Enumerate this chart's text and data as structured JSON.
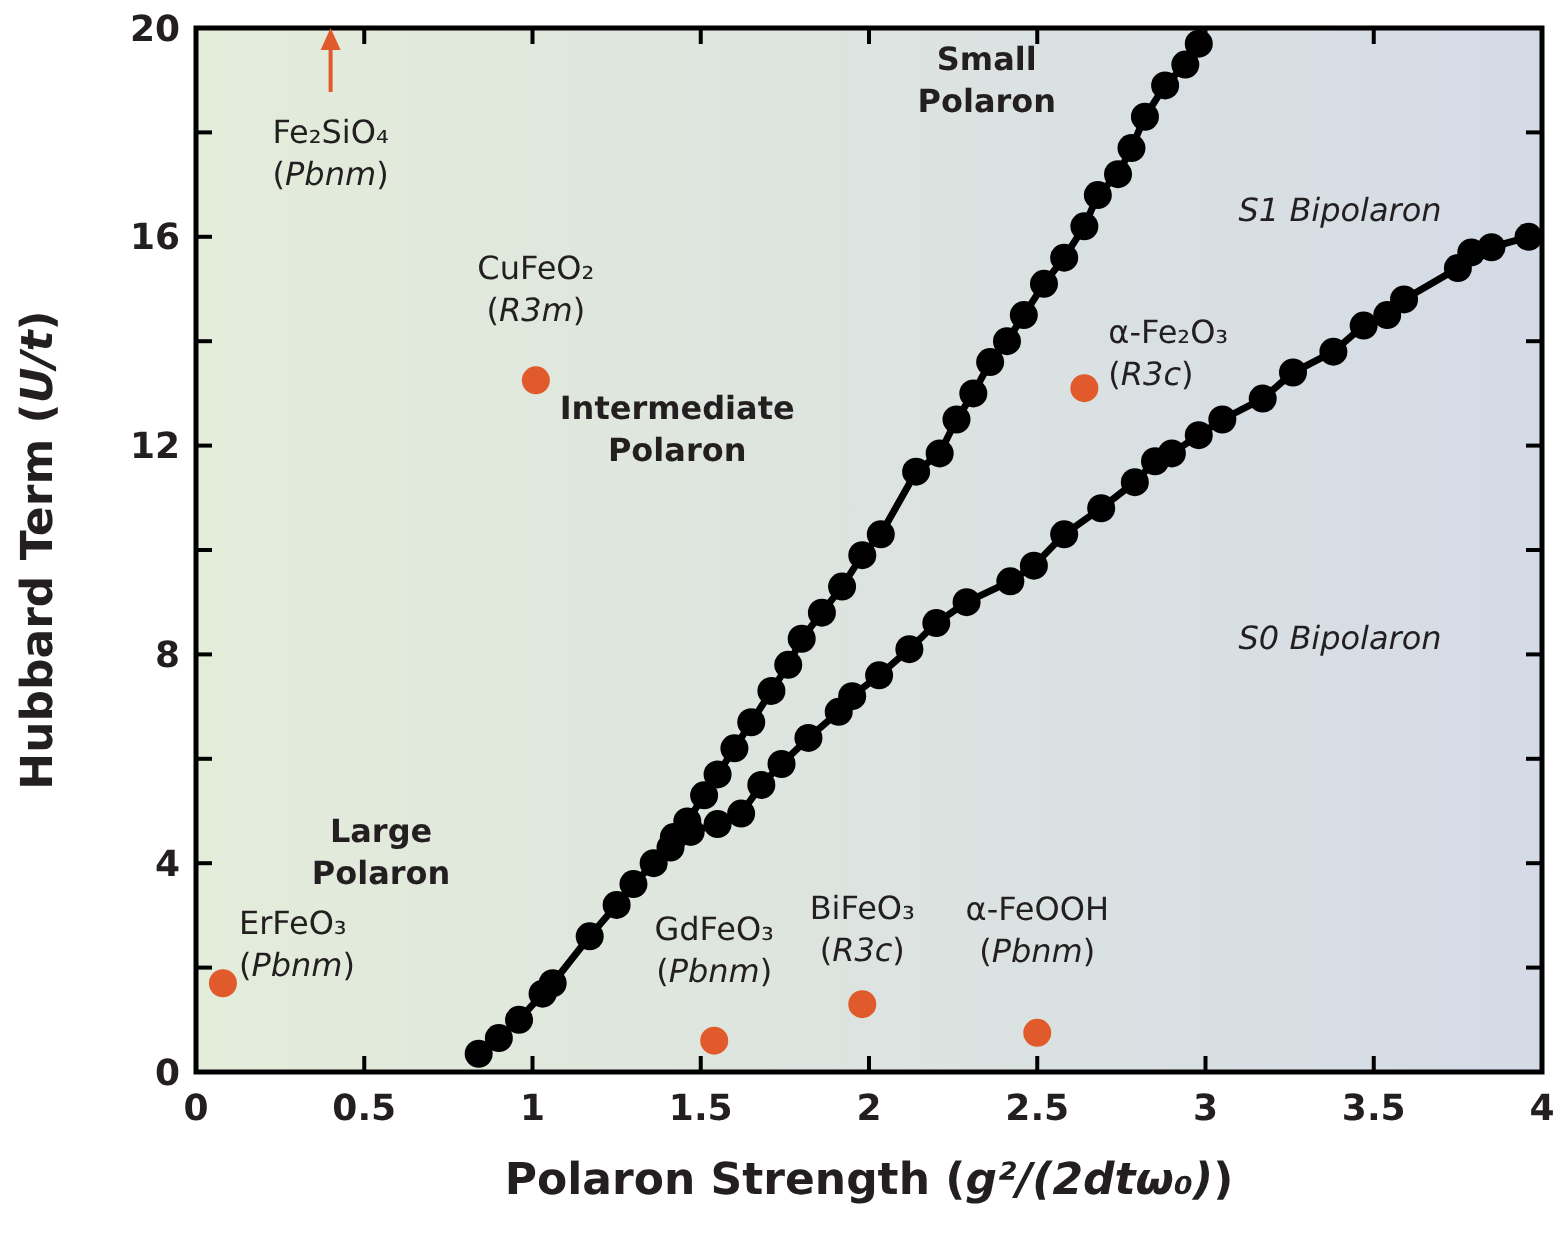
{
  "chart_data": {
    "type": "line",
    "xlabel": "Polaron Strength (g²/(2dtω₀))",
    "ylabel": "Hubbard Term (U/t)",
    "xlim": [
      0,
      4
    ],
    "ylim": [
      0,
      20
    ],
    "xticks": [
      0,
      0.5,
      1,
      1.5,
      2,
      2.5,
      3,
      3.5,
      4
    ],
    "yticks": [
      0,
      {
        "value": 2,
        "label": null
      },
      4,
      {
        "value": 6,
        "label": null
      },
      8,
      {
        "value": 10,
        "label": null
      },
      12,
      {
        "value": 14,
        "label": null
      },
      16,
      {
        "value": 18,
        "label": null
      },
      20
    ],
    "grid": false,
    "legend": false,
    "marker": "circle",
    "line_style": "solid",
    "series": [
      {
        "color": "#000000",
        "x": [
          0.84,
          0.9,
          0.96,
          1.03,
          1.06,
          1.17,
          1.25,
          1.3,
          1.36,
          1.42,
          1.46,
          1.51,
          1.55,
          1.6,
          1.65,
          1.71,
          1.76,
          1.8,
          1.86,
          1.92,
          1.98,
          2.035,
          2.14,
          2.21,
          2.26,
          2.31,
          2.36,
          2.41,
          2.46,
          2.52,
          2.58,
          2.64,
          2.68,
          2.74,
          2.78,
          2.82,
          2.88,
          2.94,
          2.98
        ],
        "values": [
          0.35,
          0.65,
          1.0,
          1.5,
          1.7,
          2.6,
          3.2,
          3.6,
          4.0,
          4.5,
          4.8,
          5.3,
          5.7,
          6.2,
          6.7,
          7.3,
          7.8,
          8.3,
          8.8,
          9.3,
          9.9,
          10.3,
          11.5,
          11.85,
          12.5,
          13.0,
          13.6,
          14.0,
          14.5,
          15.1,
          15.6,
          16.2,
          16.8,
          17.2,
          17.7,
          18.3,
          18.9,
          19.3,
          19.7
        ]
      },
      {
        "color": "#000000",
        "x": [
          1.41,
          1.47,
          1.55,
          1.62,
          1.68,
          1.74,
          1.82,
          1.91,
          1.95,
          2.03,
          2.12,
          2.2,
          2.29,
          2.42,
          2.49,
          2.58,
          2.69,
          2.79,
          2.85,
          2.9,
          2.98,
          3.05,
          3.17,
          3.26,
          3.38,
          3.47,
          3.54,
          3.59,
          3.75,
          3.79,
          3.85,
          3.96
        ],
        "values": [
          4.3,
          4.6,
          4.75,
          4.95,
          5.5,
          5.9,
          6.4,
          6.9,
          7.2,
          7.6,
          8.1,
          8.6,
          9.0,
          9.4,
          9.7,
          10.3,
          10.8,
          11.3,
          11.7,
          11.85,
          12.2,
          12.5,
          12.9,
          13.4,
          13.8,
          14.3,
          14.5,
          14.8,
          15.4,
          15.7,
          15.8,
          16.0
        ]
      },
      {
        "type": "scatter",
        "color": "#e05a2b",
        "x": [
          0.08,
          1.01,
          1.54,
          1.98,
          2.5,
          2.64
        ],
        "values": [
          1.7,
          13.25,
          0.6,
          1.3,
          0.75,
          13.1
        ]
      }
    ],
    "annotations": [
      {
        "text": "ErFeO₃\n(Pbnm)",
        "x": 0.08,
        "y": 1.7
      },
      {
        "text": "CuFeO₂\n(R3m)",
        "x": 1.01,
        "y": 13.25
      },
      {
        "text": "GdFeO₃\n(Pbnm)",
        "x": 1.54,
        "y": 0.6
      },
      {
        "text": "BiFeO₃\n(R3c)",
        "x": 1.98,
        "y": 1.3
      },
      {
        "text": "α-FeOOH\n(Pbnm)",
        "x": 2.5,
        "y": 0.75
      },
      {
        "text": "α-Fe₂O₃\n(R3c)",
        "x": 2.64,
        "y": 13.1
      },
      "Fe₂SiO₄\n(Pbnm)",
      "Large\nPolaron",
      "Intermediate\nPolaron",
      "Small\nPolaron",
      "S1 Bipolaron",
      "S0 Bipolaron"
    ]
  }
}
